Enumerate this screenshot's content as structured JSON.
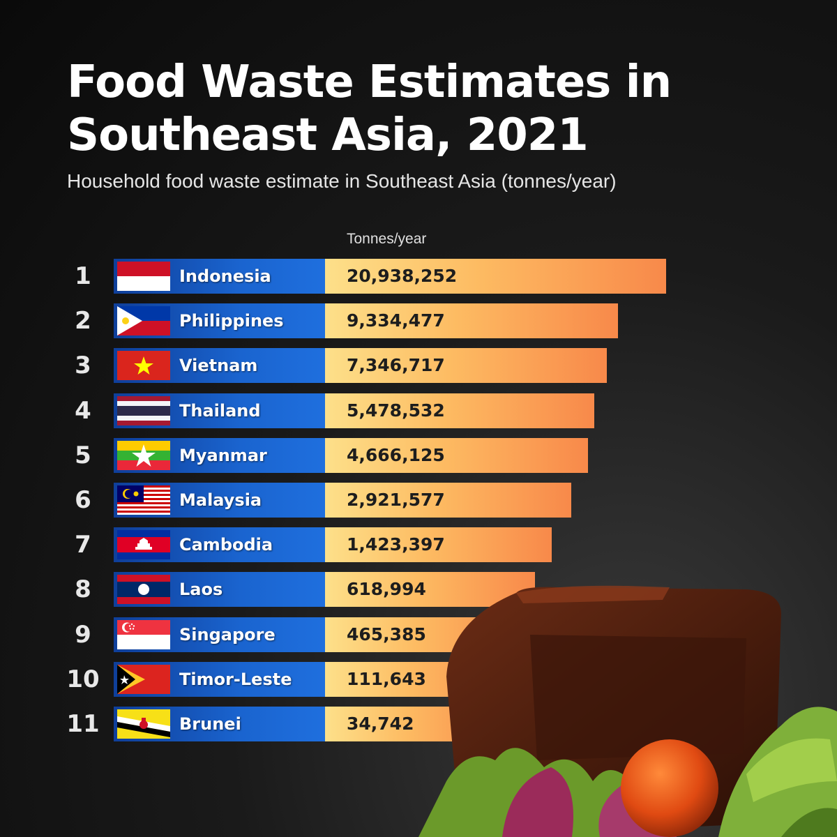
{
  "header": {
    "title": "Food Waste Estimates in Southeast Asia, 2021",
    "subtitle": "Household food waste estimate in Southeast Asia (tonnes/year)"
  },
  "colors": {
    "country_bar": "#1a64cf",
    "value_bar_start": "#fde08a",
    "value_bar_end": "#f8894a",
    "background": "#0a0a0a"
  },
  "chart_data": {
    "type": "bar",
    "orientation": "horizontal",
    "column_label": "Tonnes/year",
    "ranks": [
      "1",
      "2",
      "3",
      "4",
      "5",
      "6",
      "7",
      "8",
      "9",
      "10",
      "11"
    ],
    "categories": [
      "Indonesia",
      "Philippines",
      "Vietnam",
      "Thailand",
      "Myanmar",
      "Malaysia",
      "Cambodia",
      "Laos",
      "Singapore",
      "Timor-Leste",
      "Brunei"
    ],
    "values": [
      20938252,
      9334477,
      7346717,
      5478532,
      4666125,
      2921577,
      1423397,
      618994,
      465385,
      111643,
      34742
    ],
    "value_labels": [
      "20,938,252",
      "9,334,477",
      "7,346,717",
      "5,478,532",
      "4,666,125",
      "2,921,577",
      "1,423,397",
      "618,994",
      "465,385",
      "111,643",
      "34,742"
    ],
    "flag_icons": [
      "indonesia-flag-icon",
      "philippines-flag-icon",
      "vietnam-flag-icon",
      "thailand-flag-icon",
      "myanmar-flag-icon",
      "malaysia-flag-icon",
      "cambodia-flag-icon",
      "laos-flag-icon",
      "singapore-flag-icon",
      "timor-leste-flag-icon",
      "brunei-flag-icon"
    ]
  }
}
